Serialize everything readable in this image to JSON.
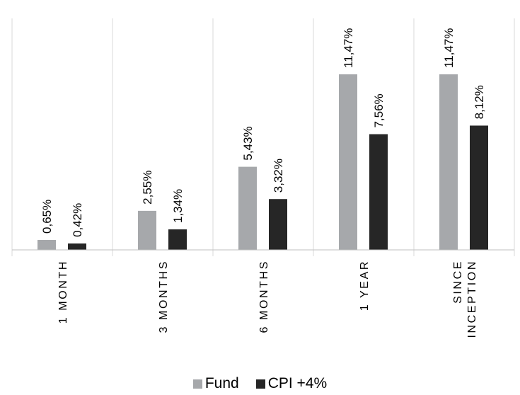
{
  "chart_data": {
    "type": "bar",
    "categories": [
      "1 MONTH",
      "3 MONTHS",
      "6 MONTHS",
      "1 YEAR",
      "SINCE INCEPTION"
    ],
    "category_lines": [
      [
        "1 MONTH"
      ],
      [
        "3 MONTHS"
      ],
      [
        "6 MONTHS"
      ],
      [
        "1 YEAR"
      ],
      [
        "SINCE",
        "INCEPTION"
      ]
    ],
    "series": [
      {
        "name": "Fund",
        "color": "#a6a8ab",
        "values": [
          0.65,
          2.55,
          5.43,
          11.47,
          11.47
        ],
        "labels": [
          "0,65%",
          "2,55%",
          "5,43%",
          "11,47%",
          "11,47%"
        ]
      },
      {
        "name": "CPI +4%",
        "color": "#262626",
        "values": [
          0.42,
          1.34,
          3.32,
          7.56,
          8.12
        ],
        "labels": [
          "0,42%",
          "1,34%",
          "3,32%",
          "7,56%",
          "8,12%"
        ]
      }
    ],
    "title": "",
    "xlabel": "",
    "ylabel": "",
    "ylim": [
      0,
      11.47
    ],
    "grid": "vertical category separators",
    "legend_position": "bottom"
  }
}
